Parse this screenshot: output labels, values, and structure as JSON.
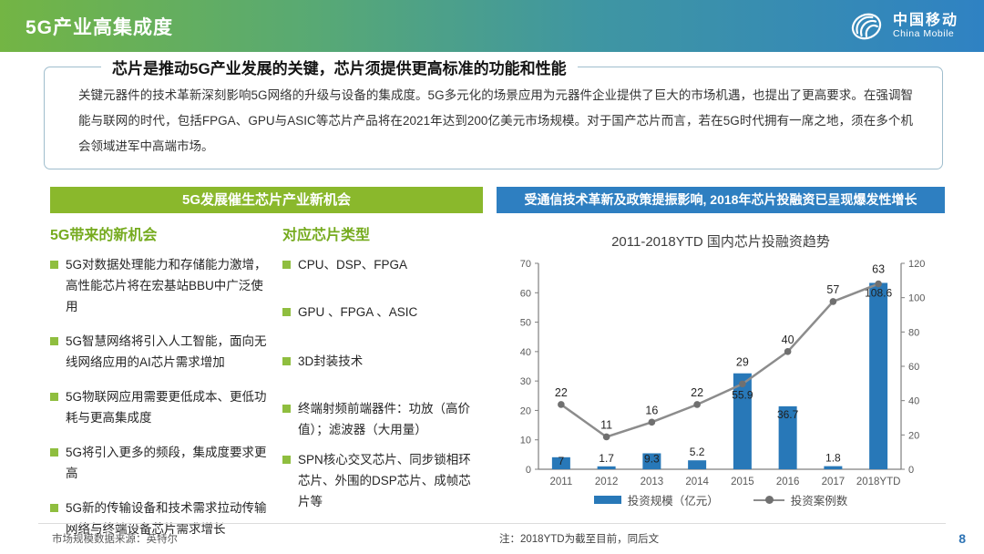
{
  "header": {
    "title": "5G产业高集成度",
    "logo_cn": "中国移动",
    "logo_en": "China Mobile"
  },
  "summary_box": {
    "title": "芯片是推动5G产业发展的关键，芯片须提供更高标准的功能和性能",
    "body": "关键元器件的技术革新深刻影响5G网络的升级与设备的集成度。5G多元化的场景应用为元器件企业提供了巨大的市场机遇，也提出了更高要求。在强调智能与联网的时代，包括FPGA、GPU与ASIC等芯片产品将在2021年达到200亿美元市场规模。对于国产芯片而言，若在5G时代拥有一席之地，须在多个机会领域进军中高端市场。"
  },
  "left_panel": {
    "header": "5G发展催生芯片产业新机会",
    "col1": {
      "title": "5G带来的新机会",
      "items": [
        "5G对数据处理能力和存储能力激增，高性能芯片将在宏基站BBU中广泛使用",
        "5G智慧网络将引入人工智能，面向无线网络应用的AI芯片需求增加",
        "5G物联网应用需要更低成本、更低功耗与更高集成度",
        "5G将引入更多的频段，集成度要求更高",
        "5G新的传输设备和技术需求拉动传输网络与终端设备芯片需求增长"
      ]
    },
    "col2": {
      "title": "对应芯片类型",
      "items": [
        "CPU、DSP、FPGA",
        "GPU 、FPGA 、ASIC",
        "3D封装技术",
        "终端射频前端器件：功放（高价值）；滤波器（大用量）",
        "SPN核心交叉芯片、同步锁相环芯片、外围的DSP芯片、成帧芯片等"
      ]
    }
  },
  "right_panel": {
    "header": "受通信技术革新及政策提振影响, 2018年芯片投融资已呈现爆发性增长",
    "note": "注：2018YTD为截至目前，同后文"
  },
  "chart_data": {
    "type": "bar",
    "combo": "bar+line",
    "title": "2011-2018YTD 国内芯片投融资趋势",
    "categories": [
      "2011",
      "2012",
      "2013",
      "2014",
      "2015",
      "2016",
      "2017",
      "2018YTD"
    ],
    "series": [
      {
        "name": "投资规模（亿元）",
        "type": "bar",
        "axis": "right",
        "color": "#2878b8",
        "values": [
          7,
          1.7,
          9.3,
          5.2,
          55.9,
          36.7,
          1.8,
          108.6
        ]
      },
      {
        "name": "投资案例数",
        "type": "line",
        "axis": "left",
        "color": "#8c8c8c",
        "values": [
          22,
          11,
          16,
          22,
          29,
          40,
          57,
          63
        ]
      }
    ],
    "left_axis": {
      "min": 0,
      "max": 70,
      "step": 10
    },
    "right_axis": {
      "min": 0,
      "max": 120,
      "step": 20
    },
    "grid": false,
    "legend_position": "bottom",
    "bar_label_dy": [
      8,
      -5,
      10,
      -5,
      28,
      13,
      -5,
      15
    ],
    "line_label_dy": [
      -9,
      -9,
      -9,
      -9,
      -20,
      -9,
      -9,
      -12
    ]
  },
  "footer": {
    "source": "市场规模数据来源：英特尔",
    "page": "8"
  },
  "colors": {
    "banner_green": "#73b544",
    "banner_blue": "#2f82c3",
    "panel_green": "#8ab82c",
    "panel_blue": "#2e7fc1",
    "bar": "#2878b8",
    "line": "#8c8c8c",
    "page_number": "#2e74b5"
  }
}
